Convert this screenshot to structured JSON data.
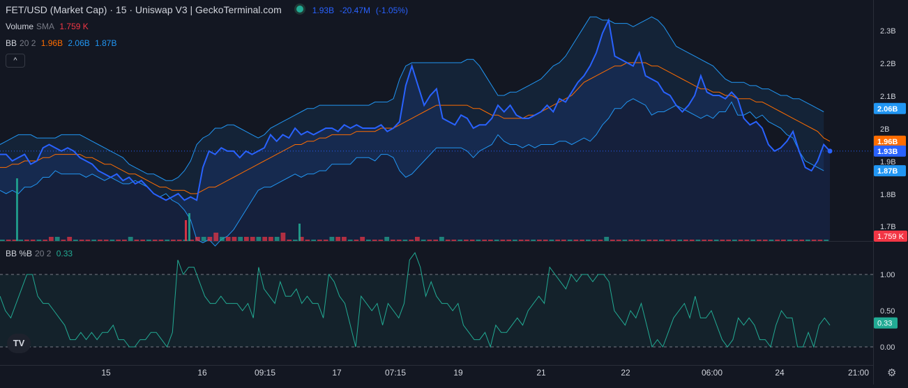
{
  "header": {
    "title": "FET/USD (Market Cap) · 15 · Uniswap V3 | GeckoTerminal.com",
    "price": "1.93B",
    "change": "-20.47M",
    "change_pct": "(-1.05%)"
  },
  "volume_legend": {
    "name": "Volume",
    "ma": "SMA",
    "value": "1.759 K"
  },
  "bb_legend": {
    "name": "BB",
    "params": "20 2",
    "basis": "1.96B",
    "upper": "2.06B",
    "lower": "1.87B"
  },
  "bbp_legend": {
    "name": "BB %B",
    "params": "20 2",
    "value": "0.33"
  },
  "collapse_button": "^",
  "logo_text": "TV",
  "settings_icon": "⚙",
  "colors": {
    "background": "#131722",
    "price_line": "#2962ff",
    "basis": "#ff6d00",
    "band": "#2196f3",
    "volume_up": "#22ab94",
    "volume_down": "#f23645",
    "bbp_line": "#22ab94",
    "grid": "#2a2e39"
  },
  "chart_data": [
    {
      "type": "line",
      "title": "FET/USD (Market Cap) · 15 · Uniswap V3",
      "ylabel": "",
      "xlabel": "",
      "ylim": [
        1.7,
        2.4
      ],
      "y_ticks": [
        1.7,
        1.8,
        1.9,
        2.0,
        2.1,
        2.2,
        2.3
      ],
      "y_tick_labels": [
        "1.7B",
        "1.8B",
        "1.9B",
        "2B",
        "2.1B",
        "2.2B",
        "2.3B"
      ],
      "x_ticks": [
        "15",
        "16",
        "09:15",
        "17",
        "07:15",
        "19",
        "21",
        "22",
        "06:00",
        "24",
        "21:00"
      ],
      "series": [
        {
          "values": [
            1.92,
            1.92,
            1.9,
            1.91,
            1.92,
            1.89,
            1.9,
            1.94,
            1.95,
            1.94,
            1.93,
            1.94,
            1.93,
            1.91,
            1.9,
            1.89,
            1.87,
            1.86,
            1.85,
            1.86,
            1.84,
            1.85,
            1.83,
            1.84,
            1.82,
            1.8,
            1.79,
            1.78,
            1.79,
            1.8,
            1.78,
            1.79,
            1.78,
            1.88,
            1.93,
            1.92,
            1.94,
            1.93,
            1.93,
            1.91,
            1.93,
            1.92,
            1.93,
            1.94,
            1.98,
            1.96,
            1.98,
            1.97,
            2.0,
            1.98,
            1.99,
            1.98,
            1.99,
            2.0,
            2.0,
            1.99,
            2.01,
            2.0,
            2.01,
            2.0,
            2.0,
            2.0,
            2.01,
            1.99,
            2.0,
            2.02,
            2.13,
            2.19,
            2.13,
            2.07,
            2.1,
            2.12,
            2.03,
            2.02,
            2.01,
            2.04,
            2.03,
            2.0,
            2.01,
            2.01,
            2.03,
            2.07,
            2.05,
            2.07,
            2.04,
            2.03,
            2.03,
            2.04,
            2.05,
            2.07,
            2.05,
            2.09,
            2.08,
            2.11,
            2.14,
            2.16,
            2.19,
            2.23,
            2.29,
            2.33,
            2.22,
            2.21,
            2.2,
            2.19,
            2.23,
            2.16,
            2.15,
            2.14,
            2.11,
            2.1,
            2.07,
            2.05,
            2.07,
            2.1,
            2.16,
            2.11,
            2.1,
            2.1,
            2.09,
            2.11,
            2.09,
            2.03,
            2.01,
            2.02,
            2.0,
            1.95,
            1.93,
            1.94,
            1.96,
            1.99,
            1.93,
            1.88,
            1.87,
            1.9,
            1.95,
            1.93
          ]
        },
        {
          "values": [
            1.88,
            1.88,
            1.89,
            1.89,
            1.9,
            1.9,
            1.9,
            1.91,
            1.91,
            1.92,
            1.92,
            1.92,
            1.92,
            1.92,
            1.91,
            1.91,
            1.9,
            1.89,
            1.89,
            1.88,
            1.87,
            1.86,
            1.86,
            1.85,
            1.84,
            1.83,
            1.82,
            1.82,
            1.81,
            1.81,
            1.81,
            1.8,
            1.8,
            1.81,
            1.82,
            1.82,
            1.83,
            1.84,
            1.85,
            1.86,
            1.87,
            1.88,
            1.89,
            1.9,
            1.91,
            1.92,
            1.93,
            1.94,
            1.95,
            1.95,
            1.96,
            1.96,
            1.97,
            1.97,
            1.98,
            1.98,
            1.98,
            1.98,
            1.99,
            1.99,
            1.99,
            1.99,
            2.0,
            2.0,
            2.0,
            2.01,
            2.02,
            2.03,
            2.04,
            2.05,
            2.06,
            2.07,
            2.07,
            2.07,
            2.07,
            2.07,
            2.07,
            2.06,
            2.06,
            2.05,
            2.04,
            2.04,
            2.03,
            2.03,
            2.03,
            2.03,
            2.04,
            2.04,
            2.05,
            2.06,
            2.07,
            2.08,
            2.09,
            2.1,
            2.12,
            2.14,
            2.15,
            2.16,
            2.17,
            2.18,
            2.19,
            2.19,
            2.2,
            2.2,
            2.2,
            2.2,
            2.19,
            2.19,
            2.18,
            2.17,
            2.16,
            2.15,
            2.14,
            2.13,
            2.12,
            2.12,
            2.11,
            2.11,
            2.1,
            2.1,
            2.09,
            2.09,
            2.09,
            2.08,
            2.08,
            2.07,
            2.06,
            2.05,
            2.04,
            2.03,
            2.02,
            2.01,
            2.0,
            1.99,
            1.97,
            1.96
          ]
        },
        {
          "values": [
            1.95,
            1.96,
            1.97,
            1.98,
            1.98,
            1.98,
            1.97,
            1.97,
            1.97,
            1.97,
            1.98,
            1.98,
            1.98,
            1.98,
            1.97,
            1.96,
            1.95,
            1.94,
            1.93,
            1.92,
            1.91,
            1.89,
            1.88,
            1.87,
            1.86,
            1.86,
            1.85,
            1.84,
            1.84,
            1.85,
            1.87,
            1.9,
            1.95,
            1.97,
            1.98,
            2.0,
            2.0,
            2.01,
            2.01,
            2.0,
            1.99,
            1.98,
            1.97,
            1.98,
            2.0,
            2.01,
            2.02,
            2.03,
            2.04,
            2.05,
            2.06,
            2.06,
            2.07,
            2.07,
            2.07,
            2.07,
            2.07,
            2.07,
            2.07,
            2.07,
            2.07,
            2.08,
            2.08,
            2.08,
            2.09,
            2.15,
            2.19,
            2.2,
            2.2,
            2.2,
            2.2,
            2.2,
            2.2,
            2.2,
            2.2,
            2.2,
            2.21,
            2.21,
            2.19,
            2.16,
            2.13,
            2.1,
            2.1,
            2.11,
            2.11,
            2.12,
            2.13,
            2.14,
            2.15,
            2.17,
            2.19,
            2.2,
            2.22,
            2.25,
            2.28,
            2.31,
            2.34,
            2.34,
            2.33,
            2.33,
            2.32,
            2.32,
            2.32,
            2.31,
            2.32,
            2.33,
            2.34,
            2.33,
            2.31,
            2.28,
            2.25,
            2.24,
            2.23,
            2.22,
            2.21,
            2.2,
            2.19,
            2.17,
            2.15,
            2.14,
            2.14,
            2.14,
            2.13,
            2.13,
            2.12,
            2.12,
            2.11,
            2.1,
            2.1,
            2.09,
            2.09,
            2.08,
            2.07,
            2.06,
            2.05
          ]
        },
        {
          "values": [
            1.81,
            1.8,
            1.81,
            1.8,
            1.82,
            1.82,
            1.83,
            1.85,
            1.85,
            1.87,
            1.86,
            1.86,
            1.86,
            1.86,
            1.85,
            1.86,
            1.85,
            1.84,
            1.85,
            1.84,
            1.83,
            1.83,
            1.84,
            1.83,
            1.82,
            1.8,
            1.79,
            1.8,
            1.78,
            1.77,
            1.75,
            1.72,
            1.66,
            1.65,
            1.66,
            1.64,
            1.66,
            1.67,
            1.69,
            1.72,
            1.75,
            1.78,
            1.81,
            1.82,
            1.82,
            1.83,
            1.84,
            1.85,
            1.86,
            1.85,
            1.86,
            1.86,
            1.87,
            1.87,
            1.89,
            1.89,
            1.89,
            1.89,
            1.91,
            1.91,
            1.91,
            1.9,
            1.92,
            1.92,
            1.91,
            1.87,
            1.85,
            1.86,
            1.88,
            1.9,
            1.92,
            1.94,
            1.94,
            1.94,
            1.94,
            1.94,
            1.93,
            1.91,
            1.93,
            1.94,
            1.95,
            1.98,
            1.96,
            1.95,
            1.95,
            1.94,
            1.95,
            1.94,
            1.95,
            1.95,
            1.95,
            1.96,
            1.96,
            1.95,
            1.96,
            1.97,
            1.96,
            1.98,
            2.01,
            2.03,
            2.06,
            2.06,
            2.08,
            2.09,
            2.08,
            2.07,
            2.04,
            2.05,
            2.05,
            2.06,
            2.07,
            2.06,
            2.05,
            2.04,
            2.03,
            2.04,
            2.03,
            2.05,
            2.05,
            2.08,
            2.04,
            2.04,
            2.05,
            2.03,
            2.04,
            2.02,
            2.01,
            2.0,
            1.98,
            1.97,
            1.93,
            1.9,
            1.89,
            1.88,
            1.87
          ]
        }
      ],
      "volume": [
        0,
        0,
        0,
        0,
        0,
        0,
        0,
        0,
        1,
        1,
        0,
        1,
        0,
        0,
        0,
        0,
        0,
        0,
        0,
        0,
        0,
        1,
        0,
        0,
        0,
        0,
        0,
        0,
        0,
        0,
        0,
        0,
        1,
        1,
        1,
        2,
        1,
        1,
        1,
        1,
        1,
        1,
        1,
        1,
        1,
        1,
        2,
        0,
        0,
        1,
        0,
        0,
        0,
        0,
        1,
        1,
        1,
        0,
        0,
        1,
        0,
        0,
        0,
        1,
        0,
        0,
        0,
        0,
        1,
        0,
        0,
        0,
        1,
        0,
        0,
        0,
        0,
        0,
        0,
        0,
        0,
        0,
        0,
        0,
        0,
        0,
        0,
        0,
        0,
        0,
        0,
        0,
        0,
        0,
        0,
        0,
        0,
        0,
        0,
        1,
        0,
        0,
        0,
        0,
        0,
        0,
        0,
        0,
        0,
        0,
        0,
        0,
        0,
        0,
        0,
        0,
        0,
        0,
        0,
        0,
        0,
        0,
        0,
        0,
        0,
        0,
        0,
        0,
        0,
        0,
        0,
        0,
        0,
        0,
        0,
        0
      ],
      "volume_ylabel": "1.759 K",
      "right_axis_labels": [
        {
          "value": 2.06,
          "text": "2.06B",
          "color": "#2196f3"
        },
        {
          "value": 1.96,
          "text": "1.96B",
          "color": "#ff6d00"
        },
        {
          "value": 1.93,
          "text": "1.93B",
          "color": "#2962ff"
        },
        {
          "value": 1.87,
          "text": "1.87B",
          "color": "#2196f3"
        }
      ]
    },
    {
      "type": "line",
      "title": "BB %B 20 2",
      "ylim": [
        -0.15,
        1.35
      ],
      "y_ticks": [
        0,
        0.5,
        1.0
      ],
      "y_tick_labels": [
        "0.00",
        "0.50",
        "1.00"
      ],
      "series": [
        {
          "values": [
            0.7,
            0.5,
            0.4,
            0.6,
            0.8,
            1.0,
            1.0,
            0.7,
            0.6,
            0.6,
            0.5,
            0.4,
            0.3,
            0.1,
            0.1,
            0.2,
            0.1,
            0.2,
            0.1,
            0.2,
            0.2,
            0.3,
            0.1,
            0.1,
            0.0,
            0.0,
            0.1,
            0.1,
            0.2,
            0.2,
            0.1,
            0.0,
            0.2,
            1.2,
            1.0,
            1.1,
            1.1,
            0.9,
            0.7,
            0.6,
            0.6,
            0.7,
            0.6,
            0.6,
            0.6,
            0.5,
            0.6,
            0.4,
            1.1,
            0.8,
            0.7,
            0.6,
            0.9,
            0.7,
            0.7,
            0.8,
            0.6,
            0.7,
            0.6,
            0.6,
            0.4,
            1.0,
            0.9,
            0.7,
            0.6,
            0.3,
            0.0,
            0.7,
            0.6,
            0.5,
            0.6,
            0.3,
            0.6,
            0.5,
            0.4,
            0.6,
            1.2,
            1.3,
            1.1,
            0.7,
            0.9,
            0.7,
            0.6,
            0.6,
            0.5,
            0.6,
            0.3,
            0.2,
            0.1,
            0.1,
            0.2,
            0.0,
            0.3,
            0.2,
            0.2,
            0.3,
            0.4,
            0.3,
            0.5,
            0.6,
            0.7,
            0.6,
            1.1,
            1.0,
            0.9,
            0.8,
            1.0,
            0.9,
            1.0,
            1.0,
            0.9,
            1.0,
            1.0,
            0.9,
            0.5,
            0.4,
            0.3,
            0.5,
            0.4,
            0.6,
            0.3,
            0.0,
            0.1,
            0.0,
            0.2,
            0.4,
            0.5,
            0.6,
            0.4,
            0.7,
            0.4,
            0.4,
            0.5,
            0.3,
            0.1,
            0.0,
            0.1,
            0.4,
            0.3,
            0.4,
            0.3,
            0.1,
            0.1,
            0.0,
            0.3,
            0.5,
            0.4,
            0.4,
            0.0,
            0.0,
            0.2,
            0.0,
            0.3,
            0.4,
            0.3
          ]
        }
      ],
      "bands": [
        0,
        1
      ],
      "right_axis_labels": [
        {
          "value": 0.33,
          "text": "0.33",
          "color": "#22ab94"
        }
      ]
    }
  ]
}
